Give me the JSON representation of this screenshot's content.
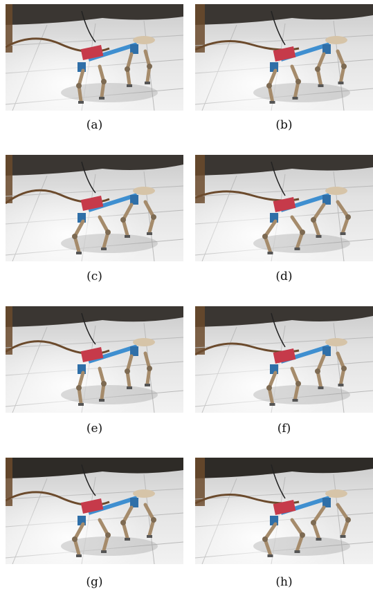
{
  "figure": {
    "panels": [
      {
        "label": "(a)"
      },
      {
        "label": "(b)"
      },
      {
        "label": "(c)"
      },
      {
        "label": "(d)"
      },
      {
        "label": "(e)"
      },
      {
        "label": "(f)"
      },
      {
        "label": "(g)"
      },
      {
        "label": "(h)"
      }
    ]
  }
}
